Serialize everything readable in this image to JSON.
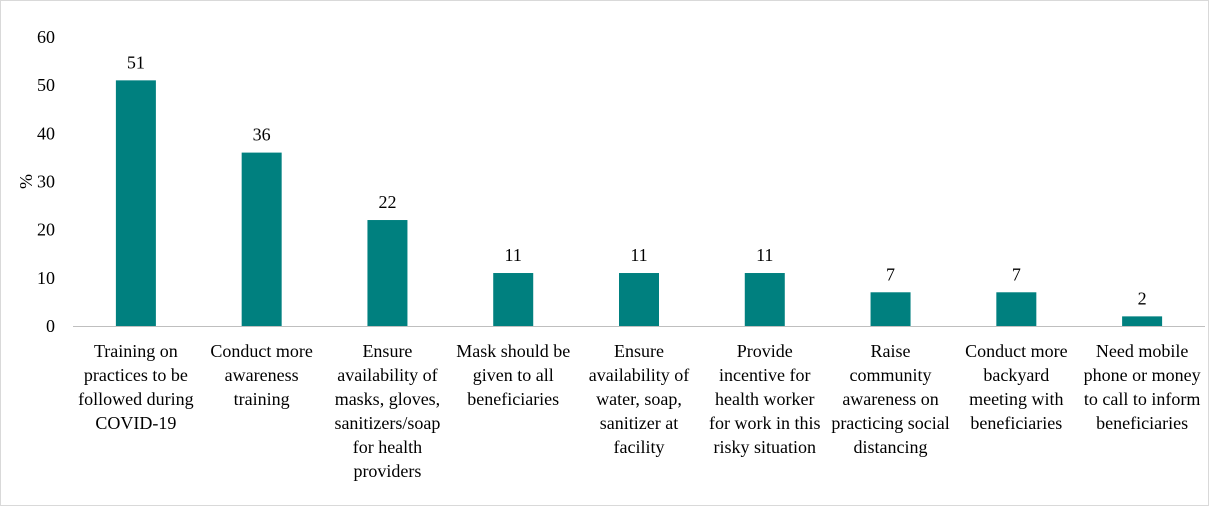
{
  "chart_data": {
    "type": "bar",
    "ylabel": "%",
    "ylim": [
      0,
      60
    ],
    "yticks": [
      0,
      10,
      20,
      30,
      40,
      50,
      60
    ],
    "grid": false,
    "bar_color": "#00807f",
    "categories": [
      "Training on practices to be followed during COVID-19",
      "Conduct more awareness training",
      "Ensure availability of masks, gloves, sanitizers/soap for health providers",
      "Mask should be given to all beneficiaries",
      "Ensure availability of water, soap, sanitizer at facility",
      "Provide incentive for health worker for work in this risky situation",
      "Raise community awareness on practicing social distancing",
      "Conduct more backyard meeting with beneficiaries",
      "Need mobile phone or money to call to inform beneficiaries"
    ],
    "values": [
      51,
      36,
      22,
      11,
      11,
      11,
      7,
      7,
      2
    ],
    "data_labels": [
      "51",
      "36",
      "22",
      "11",
      "11",
      "11",
      "7",
      "7",
      "2"
    ]
  }
}
